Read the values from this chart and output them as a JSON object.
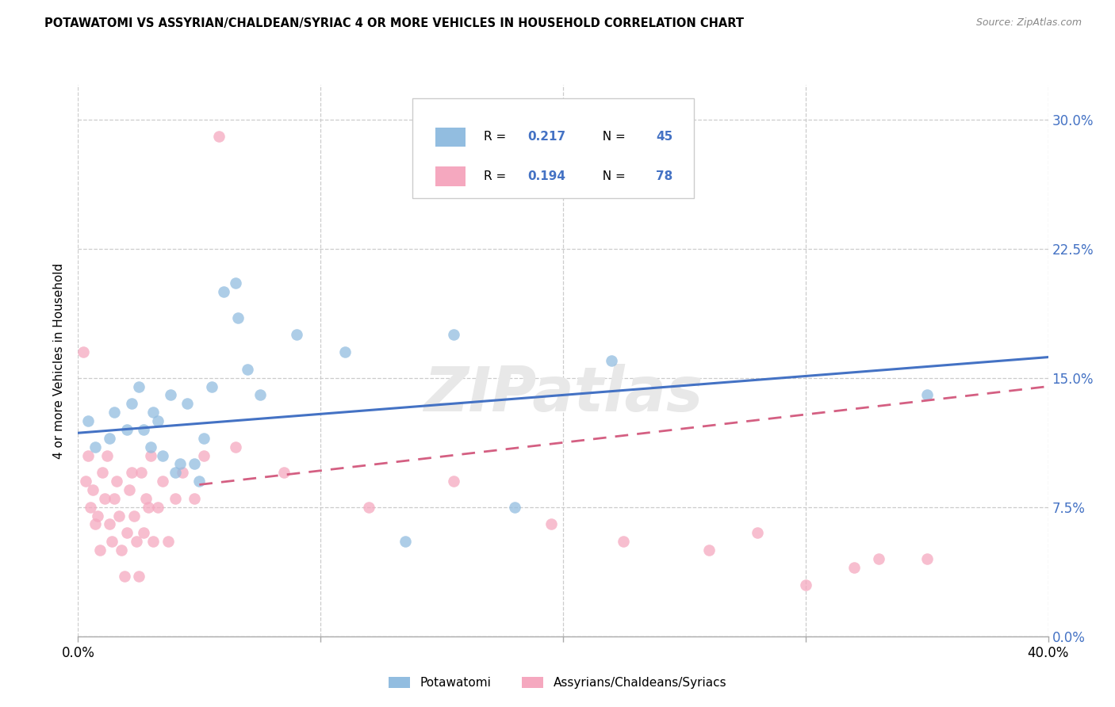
{
  "title": "POTAWATOMI VS ASSYRIAN/CHALDEAN/SYRIAC 4 OR MORE VEHICLES IN HOUSEHOLD CORRELATION CHART",
  "source": "Source: ZipAtlas.com",
  "ylabel": "4 or more Vehicles in Household",
  "xlim": [
    0.0,
    40.0
  ],
  "ylim": [
    0.0,
    32.0
  ],
  "yticks": [
    0.0,
    7.5,
    15.0,
    22.5,
    30.0
  ],
  "xtick_positions": [
    0.0,
    10.0,
    20.0,
    30.0,
    40.0
  ],
  "xtick_labels": [
    "0.0%",
    "",
    "",
    "",
    "40.0%"
  ],
  "legend_r1": "0.217",
  "legend_n1": "45",
  "legend_r2": "0.194",
  "legend_n2": "78",
  "legend_label1": "Potawatomi",
  "legend_label2": "Assyrians/Chaldeans/Syriacs",
  "blue_color": "#92bde0",
  "pink_color": "#f5a8bf",
  "blue_line_color": "#4472c4",
  "pink_line_color": "#d45f82",
  "watermark": "ZIPatlas",
  "potawatomi_x": [
    0.4,
    0.7,
    1.3,
    1.5,
    2.0,
    2.2,
    2.5,
    2.7,
    3.0,
    3.1,
    3.3,
    3.5,
    3.8,
    4.0,
    4.2,
    4.5,
    4.8,
    5.0,
    5.2,
    5.5,
    6.0,
    6.5,
    6.6,
    7.0,
    7.5,
    9.0,
    11.0,
    13.5,
    15.5,
    18.0,
    22.0,
    35.0
  ],
  "potawatomi_y": [
    12.5,
    11.0,
    11.5,
    13.0,
    12.0,
    13.5,
    14.5,
    12.0,
    11.0,
    13.0,
    12.5,
    10.5,
    14.0,
    9.5,
    10.0,
    13.5,
    10.0,
    9.0,
    11.5,
    14.5,
    20.0,
    20.5,
    18.5,
    15.5,
    14.0,
    17.5,
    16.5,
    5.5,
    17.5,
    7.5,
    16.0,
    14.0
  ],
  "assyrian_x": [
    0.2,
    0.3,
    0.4,
    0.5,
    0.6,
    0.7,
    0.8,
    0.9,
    1.0,
    1.1,
    1.2,
    1.3,
    1.4,
    1.5,
    1.6,
    1.7,
    1.8,
    1.9,
    2.0,
    2.1,
    2.2,
    2.3,
    2.4,
    2.5,
    2.6,
    2.7,
    2.8,
    2.9,
    3.0,
    3.1,
    3.3,
    3.5,
    3.7,
    4.0,
    4.3,
    4.8,
    5.2,
    5.8,
    6.5,
    8.5,
    12.0,
    15.5,
    19.5,
    22.5,
    26.0,
    28.0,
    30.0,
    32.0,
    33.0,
    35.0
  ],
  "assyrian_y": [
    16.5,
    9.0,
    10.5,
    7.5,
    8.5,
    6.5,
    7.0,
    5.0,
    9.5,
    8.0,
    10.5,
    6.5,
    5.5,
    8.0,
    9.0,
    7.0,
    5.0,
    3.5,
    6.0,
    8.5,
    9.5,
    7.0,
    5.5,
    3.5,
    9.5,
    6.0,
    8.0,
    7.5,
    10.5,
    5.5,
    7.5,
    9.0,
    5.5,
    8.0,
    9.5,
    8.0,
    10.5,
    29.0,
    11.0,
    9.5,
    7.5,
    9.0,
    6.5,
    5.5,
    5.0,
    6.0,
    3.0,
    4.0,
    4.5,
    4.5
  ],
  "blue_line_x0": 0.0,
  "blue_line_y0": 11.8,
  "blue_line_x1": 40.0,
  "blue_line_y1": 16.2,
  "pink_line_x0": 5.0,
  "pink_line_y0": 8.8,
  "pink_line_x1": 40.0,
  "pink_line_y1": 14.5
}
